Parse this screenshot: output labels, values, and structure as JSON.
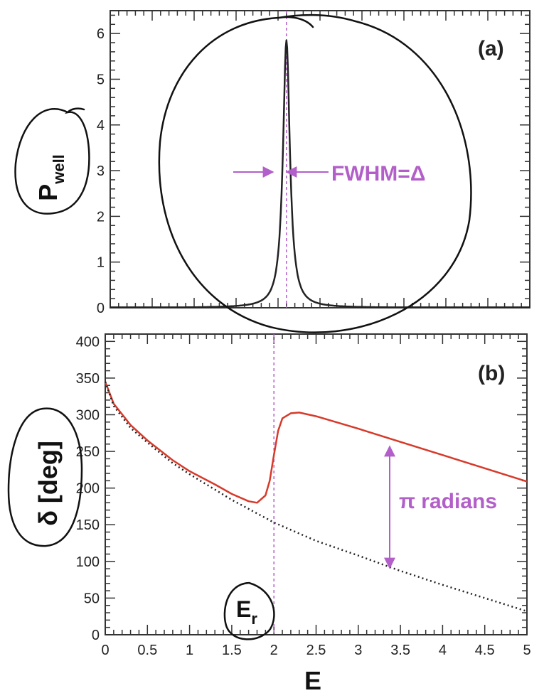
{
  "chart_data": [
    {
      "type": "line",
      "panel_label": "(a)",
      "ylabel": "P",
      "ylabel_subscript": "well",
      "xlim": [
        0,
        5
      ],
      "ylim": [
        0,
        6.5
      ],
      "y_ticks": [
        "0",
        "1",
        "2",
        "3",
        "4",
        "5",
        "6"
      ],
      "series": [
        {
          "color": "#222222",
          "peak_energy": 2.1,
          "peak_height": 5.85,
          "fwhm": 0.1,
          "x": [
            0.0,
            0.5,
            1.0,
            1.5,
            1.7,
            1.85,
            1.95,
            2.0,
            2.05,
            2.08,
            2.1,
            2.12,
            2.15,
            2.2,
            2.25,
            2.35,
            2.5,
            2.8,
            3.2,
            4.0,
            5.0
          ],
          "values": [
            0.01,
            0.01,
            0.02,
            0.04,
            0.09,
            0.19,
            0.5,
            1.17,
            2.93,
            5.2,
            5.85,
            5.2,
            2.93,
            1.17,
            0.5,
            0.23,
            0.09,
            0.04,
            0.02,
            0.01,
            0.01
          ]
        }
      ],
      "annotation": {
        "text": "FWHM=Δ",
        "color": "#b35fc9"
      },
      "reference_line": {
        "x": 2.1,
        "color": "#b35fc9",
        "style": "dashed"
      }
    },
    {
      "type": "line",
      "panel_label": "(b)",
      "ylabel": "δ [deg]",
      "xlabel": "E",
      "xlim": [
        0,
        5
      ],
      "ylim": [
        0,
        410
      ],
      "x_ticks": [
        "0",
        "0.5",
        "1",
        "1.5",
        "2",
        "2.5",
        "3",
        "3.5",
        "4",
        "4.5",
        "5"
      ],
      "y_ticks": [
        "0",
        "50",
        "100",
        "150",
        "200",
        "250",
        "300",
        "350",
        "400"
      ],
      "series": [
        {
          "style": "solid",
          "color": "#d63a2a",
          "x": [
            0.0,
            0.1,
            0.3,
            0.5,
            0.8,
            1.0,
            1.3,
            1.5,
            1.7,
            1.8,
            1.9,
            1.95,
            2.0,
            2.05,
            2.1,
            2.2,
            2.3,
            2.5,
            3.0,
            3.5,
            4.0,
            4.5,
            5.0
          ],
          "values": [
            345,
            315,
            286,
            265,
            238,
            223,
            205,
            192,
            182,
            180,
            190,
            210,
            245,
            278,
            295,
            302,
            303,
            298,
            281,
            263,
            245,
            227,
            209
          ]
        },
        {
          "style": "dotted",
          "color": "#222222",
          "x": [
            0.0,
            0.1,
            0.3,
            0.5,
            0.8,
            1.0,
            1.5,
            2.0,
            2.5,
            3.0,
            3.5,
            4.0,
            4.5,
            5.0
          ],
          "values": [
            345,
            312,
            282,
            262,
            234,
            219,
            184,
            153,
            128,
            108,
            87,
            68,
            50,
            32
          ]
        }
      ],
      "annotation": {
        "text": "π radians",
        "color": "#b35fc9"
      },
      "marker_label": "E",
      "marker_label_subscript": "r",
      "reference_line": {
        "x": 2.0,
        "color": "#b35fc9",
        "style": "dashed"
      }
    }
  ]
}
